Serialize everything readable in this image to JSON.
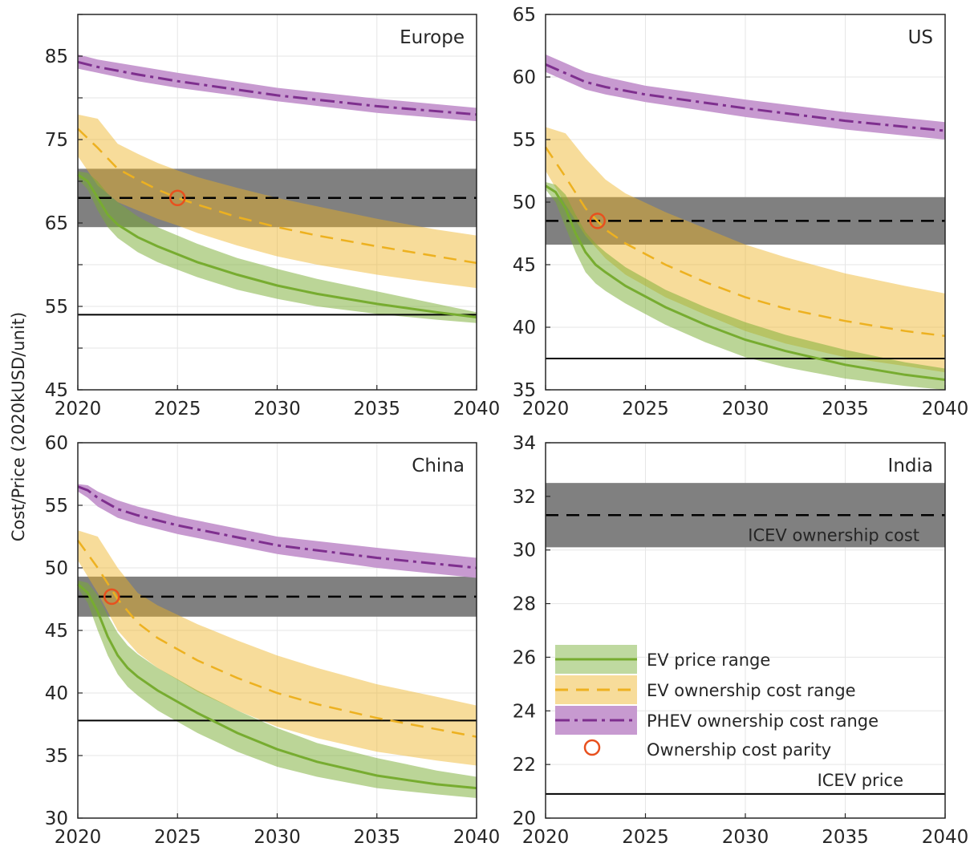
{
  "ylabel": "Cost/Price (2020kUSD/unit)",
  "colors": {
    "ev_price": "#77ac30",
    "ev_price_band": "#bfd9a0",
    "ev_own": "#edb120",
    "ev_own_band": "#f7dc9a",
    "phev": "#7e2f8e",
    "phev_band": "#c79ad0",
    "icev_band": "#808080",
    "parity": "#e8501e",
    "axis": "#262626",
    "grid": "#e6e6e6"
  },
  "legend": {
    "ev_price": "EV price range",
    "ev_own": "EV ownership cost range",
    "phev": "PHEV ownership cost range",
    "parity": "Ownership cost parity"
  },
  "chart_data": [
    {
      "type": "line",
      "region": "Europe",
      "xlim": [
        2020,
        2040
      ],
      "ylim": [
        45,
        90
      ],
      "xticks": [
        2020,
        2025,
        2030,
        2035,
        2040
      ],
      "yticks": [
        45,
        50,
        55,
        60,
        65,
        70,
        75,
        80,
        85,
        90
      ],
      "ytick_labels": [
        "45",
        "",
        "55",
        "",
        "65",
        "",
        "75",
        "",
        "85",
        ""
      ],
      "icev_price": 54,
      "icev_own": {
        "center": 68,
        "lo": 64.5,
        "hi": 71.5
      },
      "parity": {
        "x": 2025.0,
        "y": 68
      },
      "ev_price": {
        "x": [
          2020,
          2020.5,
          2021,
          2021.5,
          2022,
          2023,
          2024,
          2026,
          2028,
          2030,
          2032,
          2035,
          2038,
          2040
        ],
        "center": [
          70.8,
          70,
          68,
          66,
          64.8,
          63.3,
          62.2,
          60.3,
          58.8,
          57.5,
          56.5,
          55.3,
          54.3,
          53.7
        ],
        "lo": [
          70.3,
          69,
          66.5,
          64.5,
          63.2,
          61.5,
          60.3,
          58.5,
          57,
          55.9,
          55,
          54.1,
          53.4,
          53
        ],
        "hi": [
          71.2,
          71,
          70,
          68.5,
          67.5,
          65.8,
          64.5,
          62.5,
          60.8,
          59.5,
          58.3,
          56.8,
          55.3,
          54.3
        ]
      },
      "ev_own": {
        "x": [
          2020,
          2021,
          2022,
          2023,
          2024,
          2025,
          2026,
          2028,
          2030,
          2032,
          2035,
          2038,
          2040
        ],
        "center": [
          76.3,
          74,
          71.5,
          70.2,
          69,
          68,
          67.2,
          65.7,
          64.5,
          63.5,
          62.2,
          61,
          60.2
        ],
        "lo": [
          73,
          69.5,
          67.5,
          66.5,
          65.5,
          64.7,
          63.8,
          62.3,
          61,
          60,
          58.8,
          57.8,
          57.2
        ],
        "hi": [
          78,
          77.5,
          74.5,
          73.3,
          72.2,
          71.3,
          70.5,
          69.2,
          68,
          67,
          65.5,
          64.2,
          63.5
        ]
      },
      "phev": {
        "x": [
          2020,
          2021,
          2023,
          2025,
          2030,
          2035,
          2040
        ],
        "center": [
          84.3,
          83.7,
          82.8,
          82,
          80.3,
          79,
          78
        ],
        "lo": [
          83.5,
          83,
          82,
          81.2,
          79.6,
          78.2,
          77.2
        ],
        "hi": [
          85.2,
          84.6,
          83.8,
          83,
          81.2,
          79.9,
          78.8
        ]
      }
    },
    {
      "type": "line",
      "region": "US",
      "xlim": [
        2020,
        2040
      ],
      "ylim": [
        35,
        65
      ],
      "xticks": [
        2020,
        2025,
        2030,
        2035,
        2040
      ],
      "yticks": [
        35,
        40,
        45,
        50,
        55,
        60,
        65
      ],
      "ytick_labels": [
        "35",
        "40",
        "45",
        "50",
        "55",
        "60",
        "65"
      ],
      "icev_price": 37.5,
      "icev_own": {
        "center": 48.5,
        "lo": 46.6,
        "hi": 50.4
      },
      "parity": {
        "x": 2022.6,
        "y": 48.5
      },
      "ev_price": {
        "x": [
          2020,
          2020.5,
          2021,
          2021.5,
          2022,
          2022.5,
          2023,
          2024,
          2026,
          2028,
          2030,
          2032,
          2035,
          2038,
          2040
        ],
        "center": [
          51.3,
          50.8,
          49.5,
          47.5,
          46,
          45,
          44.4,
          43.3,
          41.6,
          40.2,
          39,
          38.1,
          37,
          36.2,
          35.8
        ],
        "lo": [
          51,
          50,
          48,
          46,
          44.4,
          43.5,
          42.9,
          41.9,
          40.2,
          38.8,
          37.6,
          36.8,
          35.9,
          35.3,
          35
        ],
        "hi": [
          51.6,
          51.4,
          50.6,
          49,
          47.6,
          46.7,
          46,
          44.8,
          43,
          41.6,
          40.4,
          39.4,
          38.2,
          37.2,
          36.7
        ]
      },
      "ev_own": {
        "x": [
          2020,
          2021,
          2022,
          2023,
          2024,
          2026,
          2028,
          2030,
          2032,
          2035,
          2038,
          2040
        ],
        "center": [
          54.4,
          52,
          49.5,
          47.8,
          46.7,
          45,
          43.6,
          42.4,
          41.5,
          40.5,
          39.7,
          39.3
        ],
        "lo": [
          52.5,
          49.8,
          47.3,
          45.5,
          44.2,
          42.4,
          41,
          39.7,
          38.7,
          37.6,
          36.9,
          36.4
        ],
        "hi": [
          56,
          55.5,
          53.5,
          51.8,
          50.7,
          49.2,
          47.9,
          46.6,
          45.6,
          44.3,
          43.3,
          42.7
        ]
      },
      "phev": {
        "x": [
          2020,
          2021,
          2022,
          2023,
          2025,
          2030,
          2035,
          2040
        ],
        "center": [
          61,
          60.3,
          59.6,
          59.2,
          58.6,
          57.5,
          56.5,
          55.7
        ],
        "lo": [
          60.4,
          59.7,
          59,
          58.6,
          58,
          56.8,
          55.8,
          55
        ],
        "hi": [
          61.8,
          61.1,
          60.4,
          60,
          59.3,
          58.2,
          57.2,
          56.4
        ]
      }
    },
    {
      "type": "line",
      "region": "China",
      "xlim": [
        2020,
        2040
      ],
      "ylim": [
        30,
        60
      ],
      "xticks": [
        2020,
        2025,
        2030,
        2035,
        2040
      ],
      "yticks": [
        30,
        35,
        40,
        45,
        50,
        55,
        60
      ],
      "ytick_labels": [
        "30",
        "35",
        "40",
        "45",
        "50",
        "55",
        "60"
      ],
      "icev_price": 37.8,
      "icev_own": {
        "center": 47.7,
        "lo": 46.1,
        "hi": 49.3
      },
      "parity": {
        "x": 2021.7,
        "y": 47.7
      },
      "ev_price": {
        "x": [
          2020,
          2020.5,
          2021,
          2021.5,
          2022,
          2022.5,
          2023,
          2024,
          2026,
          2028,
          2030,
          2032,
          2035,
          2038,
          2040
        ],
        "center": [
          48.7,
          48,
          46.5,
          44.5,
          43,
          42,
          41.3,
          40.2,
          38.4,
          36.8,
          35.5,
          34.5,
          33.4,
          32.7,
          32.4
        ],
        "lo": [
          48.4,
          47.2,
          45,
          43,
          41.5,
          40.5,
          39.8,
          38.6,
          36.8,
          35.3,
          34.1,
          33.3,
          32.4,
          31.9,
          31.6
        ],
        "hi": [
          49,
          48.8,
          47.8,
          46.2,
          44.8,
          43.8,
          43.1,
          42,
          40.2,
          38.6,
          37.2,
          36,
          34.8,
          33.8,
          33.3
        ]
      },
      "ev_own": {
        "x": [
          2020,
          2021,
          2022,
          2023,
          2024,
          2026,
          2028,
          2030,
          2032,
          2035,
          2038,
          2040
        ],
        "center": [
          52.2,
          50,
          47.5,
          45.6,
          44.4,
          42.6,
          41.2,
          40,
          39.1,
          38,
          37.1,
          36.5
        ],
        "lo": [
          50.6,
          48,
          45,
          43.2,
          42,
          40.1,
          38.6,
          37.3,
          36.4,
          35.3,
          34.6,
          34.2
        ],
        "hi": [
          53,
          52.5,
          50,
          48,
          47,
          45.5,
          44.2,
          43,
          42,
          40.7,
          39.7,
          39
        ]
      },
      "phev": {
        "x": [
          2020,
          2020.5,
          2021,
          2022,
          2023,
          2025,
          2030,
          2035,
          2040
        ],
        "center": [
          56.5,
          56.2,
          55.6,
          54.7,
          54.2,
          53.4,
          51.8,
          50.8,
          50
        ],
        "lo": [
          56.1,
          55.6,
          54.9,
          54,
          53.5,
          52.7,
          51.1,
          50,
          49.2
        ],
        "hi": [
          56.7,
          56.6,
          56.1,
          55.4,
          54.9,
          54.1,
          52.5,
          51.6,
          50.8
        ]
      }
    },
    {
      "type": "line",
      "region": "India",
      "xlim": [
        2020,
        2040
      ],
      "ylim": [
        20,
        34
      ],
      "xticks": [
        2020,
        2025,
        2030,
        2035,
        2040
      ],
      "yticks": [
        20,
        22,
        24,
        26,
        28,
        30,
        32,
        34
      ],
      "ytick_labels": [
        "20",
        "22",
        "24",
        "26",
        "28",
        "30",
        "32",
        "34"
      ],
      "icev_price": 20.9,
      "icev_own": {
        "center": 31.3,
        "lo": 30.1,
        "hi": 32.5
      },
      "icev_own_label": "ICEV ownership cost",
      "icev_price_label": "ICEV price"
    }
  ]
}
